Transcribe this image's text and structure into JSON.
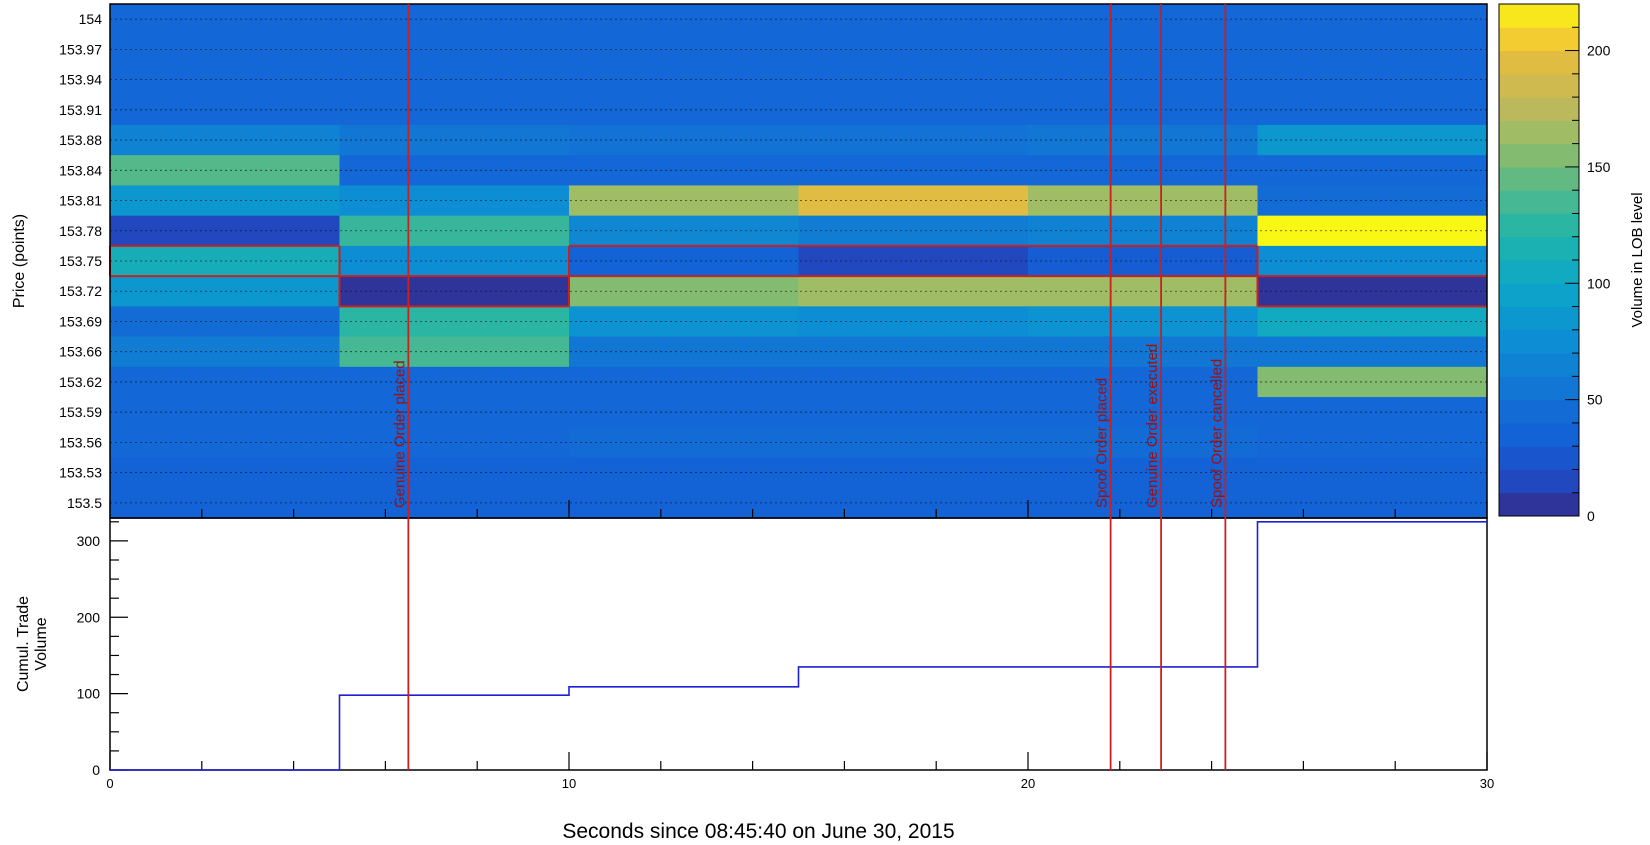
{
  "chart_data": [
    {
      "type": "heatmap",
      "ylabel": "Price (points)",
      "price_levels": [
        "154",
        "153.97",
        "153.94",
        "153.91",
        "153.88",
        "153.84",
        "153.81",
        "153.78",
        "153.75",
        "153.72",
        "153.69",
        "153.66",
        "153.62",
        "153.59",
        "153.56",
        "153.53",
        "153.5"
      ],
      "time_bins": [
        0,
        5,
        10,
        15,
        20,
        25,
        30
      ],
      "xlim": [
        0,
        30
      ],
      "grid": true,
      "volumes": [
        [
          40,
          40,
          40,
          40,
          40,
          40
        ],
        [
          40,
          40,
          40,
          40,
          40,
          40
        ],
        [
          40,
          40,
          40,
          40,
          40,
          40
        ],
        [
          40,
          40,
          40,
          40,
          40,
          40
        ],
        [
          65,
          55,
          50,
          50,
          55,
          85
        ],
        [
          140,
          40,
          40,
          40,
          40,
          40
        ],
        [
          85,
          75,
          165,
          195,
          165,
          45
        ],
        [
          15,
          130,
          70,
          60,
          65,
          220
        ],
        [
          110,
          75,
          35,
          15,
          30,
          75
        ],
        [
          85,
          5,
          155,
          165,
          165,
          5
        ],
        [
          45,
          125,
          80,
          75,
          80,
          105
        ],
        [
          60,
          135,
          55,
          55,
          55,
          55
        ],
        [
          40,
          40,
          40,
          40,
          40,
          155
        ],
        [
          40,
          40,
          40,
          40,
          40,
          40
        ],
        [
          40,
          40,
          45,
          45,
          45,
          40
        ],
        [
          35,
          35,
          35,
          35,
          35,
          35
        ],
        [
          35,
          35,
          35,
          35,
          35,
          35
        ]
      ],
      "highlight_level_by_bin": [
        "153.75",
        "153.72",
        "153.75",
        "153.75",
        "153.75",
        "153.72"
      ],
      "colorbar": {
        "label": "Volume in LOB level",
        "range": [
          0,
          220
        ],
        "ticks": [
          0,
          50,
          100,
          150,
          200
        ],
        "tick_labels": [
          "0",
          "50",
          "100",
          "150",
          "200"
        ]
      },
      "annotations": [
        {
          "x": 6.5,
          "text": "Genuine Order placed"
        },
        {
          "x": 21.8,
          "text": "Spoof Order placed"
        },
        {
          "x": 22.9,
          "text": "Genuine Order executed"
        },
        {
          "x": 24.3,
          "text": "Spoof Order cancelled"
        }
      ],
      "colors": {
        "annotation": "#cc1f1f",
        "highlight": "#cc1f1f"
      }
    },
    {
      "type": "line",
      "step": true,
      "ylabel": [
        "Cumul. Trade",
        "Volume"
      ],
      "xlabel": "Seconds since 08:45:40 on June 30, 2015",
      "xlim": [
        0,
        30
      ],
      "ylim": [
        0,
        330
      ],
      "x_ticks": [
        0,
        10,
        20,
        30
      ],
      "x_tick_labels": [
        "0",
        "10",
        "20",
        "30"
      ],
      "y_ticks": [
        0,
        100,
        200,
        300
      ],
      "y_tick_labels": [
        "0",
        "100",
        "200",
        "300"
      ],
      "series": [
        {
          "x": [
            0,
            5,
            10,
            15,
            20,
            25,
            30
          ],
          "y": [
            0,
            98,
            109,
            135,
            135,
            325,
            325
          ],
          "color": "#1f1fd6"
        }
      ]
    }
  ]
}
